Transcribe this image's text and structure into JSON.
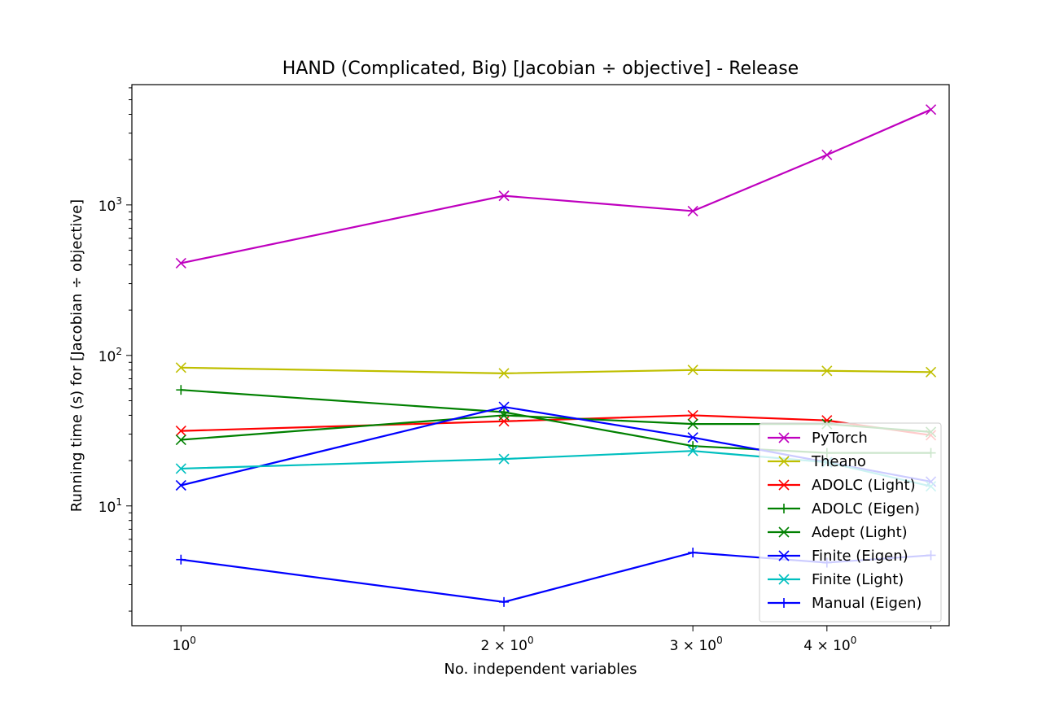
{
  "chart_data": {
    "type": "line",
    "title": "HAND (Complicated, Big) [Jacobian ÷ objective] - Release",
    "xlabel": "No. independent variables",
    "ylabel": "Running time (s) for [Jacobian ÷ objective]",
    "xscale": "log",
    "yscale": "log",
    "xlim": [
      0.9,
      5.2
    ],
    "ylim": [
      1.6,
      6300
    ],
    "grid": false,
    "legend_position": "lower right",
    "x": [
      1,
      2,
      3,
      4,
      5
    ],
    "x_ticks": [
      {
        "value": 1,
        "base": "10",
        "exp": "0"
      },
      {
        "value": 2,
        "base": "2 × 10",
        "exp": "0"
      },
      {
        "value": 3,
        "base": "3 × 10",
        "exp": "0"
      },
      {
        "value": 4,
        "base": "4 × 10",
        "exp": "0"
      }
    ],
    "y_ticks": [
      {
        "value": 10,
        "base": "10",
        "exp": "1"
      },
      {
        "value": 100,
        "base": "10",
        "exp": "2"
      },
      {
        "value": 1000,
        "base": "10",
        "exp": "3"
      }
    ],
    "series": [
      {
        "name": "PyTorch",
        "color": "#bf00bf",
        "marker": "x",
        "values": [
          410,
          1150,
          910,
          2150,
          4300
        ]
      },
      {
        "name": "Theano",
        "color": "#bfbf00",
        "marker": "x",
        "values": [
          83,
          76,
          80,
          79,
          77.5
        ]
      },
      {
        "name": "ADOLC (Light)",
        "color": "#ff0000",
        "marker": "x",
        "values": [
          31.5,
          36.5,
          40,
          37,
          29.5
        ]
      },
      {
        "name": "ADOLC (Eigen)",
        "color": "#008000",
        "marker": "+",
        "values": [
          59,
          42,
          25,
          22.5,
          22.5
        ]
      },
      {
        "name": "Adept (Light)",
        "color": "#008000",
        "marker": "x",
        "values": [
          27.5,
          40,
          35,
          35,
          31
        ]
      },
      {
        "name": "Finite (Eigen)",
        "color": "#0000ff",
        "marker": "x",
        "values": [
          13.7,
          45.5,
          28.5,
          19.5,
          14.5
        ]
      },
      {
        "name": "Finite (Light)",
        "color": "#00bfbf",
        "marker": "x",
        "values": [
          17.7,
          20.5,
          23.2,
          19.5,
          13.5
        ]
      },
      {
        "name": "Manual (Eigen)",
        "color": "#0000ff",
        "marker": "+",
        "values": [
          4.4,
          2.3,
          4.9,
          4.2,
          4.7
        ]
      }
    ]
  }
}
